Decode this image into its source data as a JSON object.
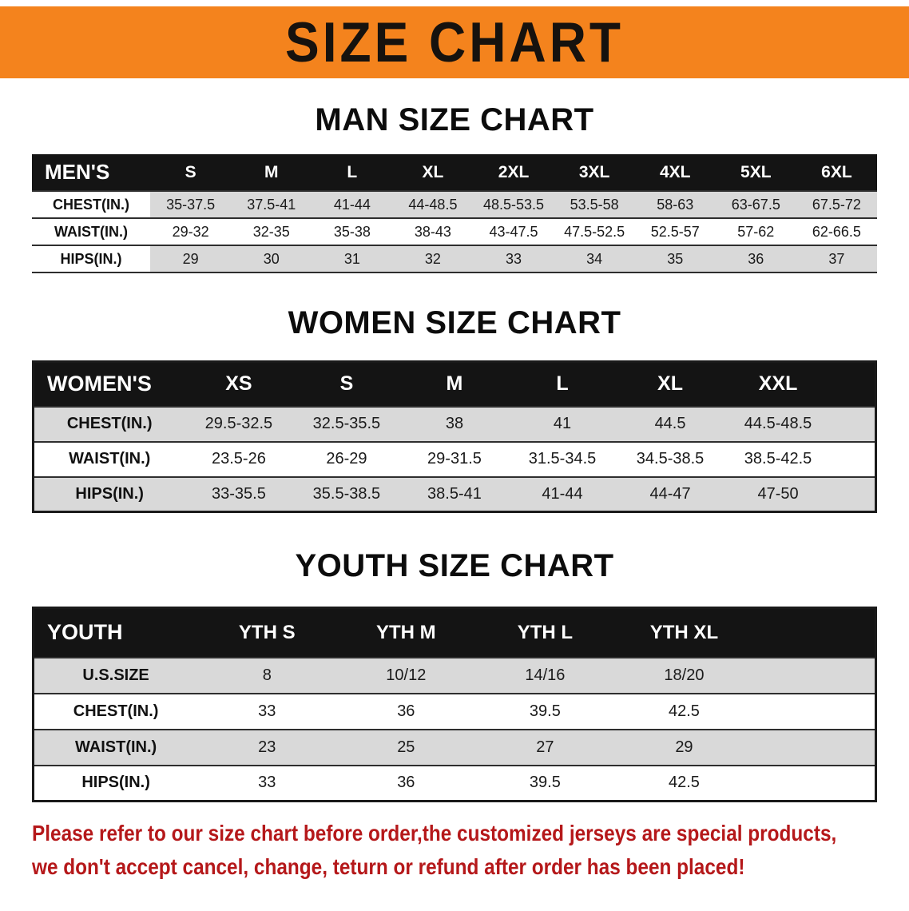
{
  "banner": {
    "title": "SIZE CHART"
  },
  "colors": {
    "banner_bg": "#f4831d",
    "header_bar": "#141414",
    "row_stripe": "#d9d9d9",
    "notice_text": "#b5181a"
  },
  "chart_data": [
    {
      "type": "table",
      "title": "MAN SIZE CHART",
      "header": [
        "MEN'S",
        "S",
        "M",
        "L",
        "XL",
        "2XL",
        "3XL",
        "4XL",
        "5XL",
        "6XL"
      ],
      "rows": [
        [
          "CHEST(IN.)",
          "35-37.5",
          "37.5-41",
          "41-44",
          "44-48.5",
          "48.5-53.5",
          "53.5-58",
          "58-63",
          "63-67.5",
          "67.5-72"
        ],
        [
          "WAIST(IN.)",
          "29-32",
          "32-35",
          "35-38",
          "38-43",
          "43-47.5",
          "47.5-52.5",
          "52.5-57",
          "57-62",
          "62-66.5"
        ],
        [
          "HIPS(IN.)",
          "29",
          "30",
          "31",
          "32",
          "33",
          "34",
          "35",
          "36",
          "37"
        ]
      ]
    },
    {
      "type": "table",
      "title": "WOMEN SIZE CHART",
      "header": [
        "WOMEN'S",
        "XS",
        "S",
        "M",
        "L",
        "XL",
        "XXL"
      ],
      "rows": [
        [
          "CHEST(IN.)",
          "29.5-32.5",
          "32.5-35.5",
          "38",
          "41",
          "44.5",
          "44.5-48.5"
        ],
        [
          "WAIST(IN.)",
          "23.5-26",
          "26-29",
          "29-31.5",
          "31.5-34.5",
          "34.5-38.5",
          "38.5-42.5"
        ],
        [
          "HIPS(IN.)",
          "33-35.5",
          "35.5-38.5",
          "38.5-41",
          "41-44",
          "44-47",
          "47-50"
        ]
      ]
    },
    {
      "type": "table",
      "title": "YOUTH SIZE CHART",
      "header": [
        "YOUTH",
        "YTH S",
        "YTH M",
        "YTH L",
        "YTH XL"
      ],
      "rows": [
        [
          "U.S.SIZE",
          "8",
          "10/12",
          "14/16",
          "18/20"
        ],
        [
          "CHEST(IN.)",
          "33",
          "36",
          "39.5",
          "42.5"
        ],
        [
          "WAIST(IN.)",
          "23",
          "25",
          "27",
          "29"
        ],
        [
          "HIPS(IN.)",
          "33",
          "36",
          "39.5",
          "42.5"
        ]
      ]
    }
  ],
  "notice": {
    "line1": "Please refer to our size chart before order,the customized jerseys are special products,",
    "line2": "we don't accept cancel, change, teturn or refund after order has been placed!"
  }
}
